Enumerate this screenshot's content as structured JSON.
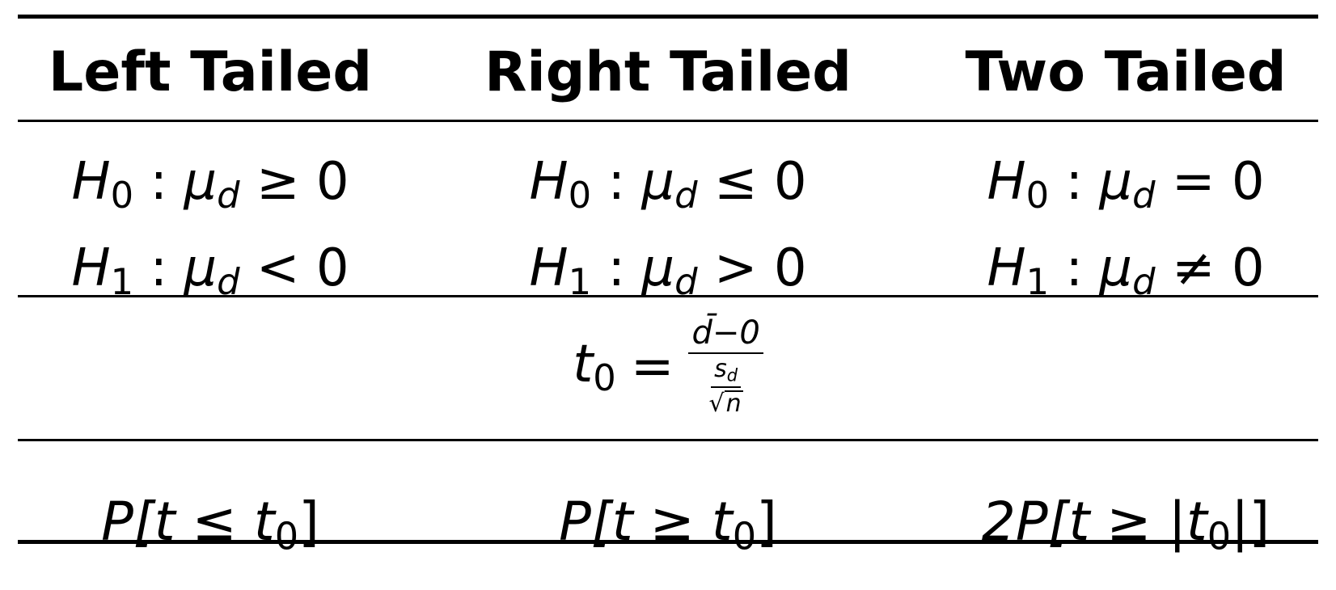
{
  "headers": {
    "left": "Left Tailed",
    "right": "Right Tailed",
    "two": "Two Tailed"
  },
  "hypotheses": {
    "left": {
      "h0_rel": "≥",
      "h1_rel": "<"
    },
    "right": {
      "h0_rel": "≤",
      "h1_rel": ">"
    },
    "two": {
      "h0_rel": "=",
      "h1_rel": "≠"
    },
    "h0_symbol": "H",
    "h0_sub": "0",
    "h1_symbol": "H",
    "h1_sub": "1",
    "colon": ":",
    "mu": "μ",
    "mu_sub": "d",
    "value": "0"
  },
  "statistic": {
    "lhs": "t",
    "lhs_sub": "0",
    "equals": "=",
    "numerator": "d̄−0",
    "den_numerator": "s",
    "den_numerator_sub": "d",
    "den_denominator_root": "√",
    "den_denominator_var": "n"
  },
  "pvalues": {
    "left": "P[t ≤ t",
    "left_sub": "0",
    "left_close": "]",
    "right": "P[t ≥ t",
    "right_sub": "0",
    "right_close": "]",
    "two": "2P[t ≥ |t",
    "two_sub": "0",
    "two_close": "|]"
  }
}
